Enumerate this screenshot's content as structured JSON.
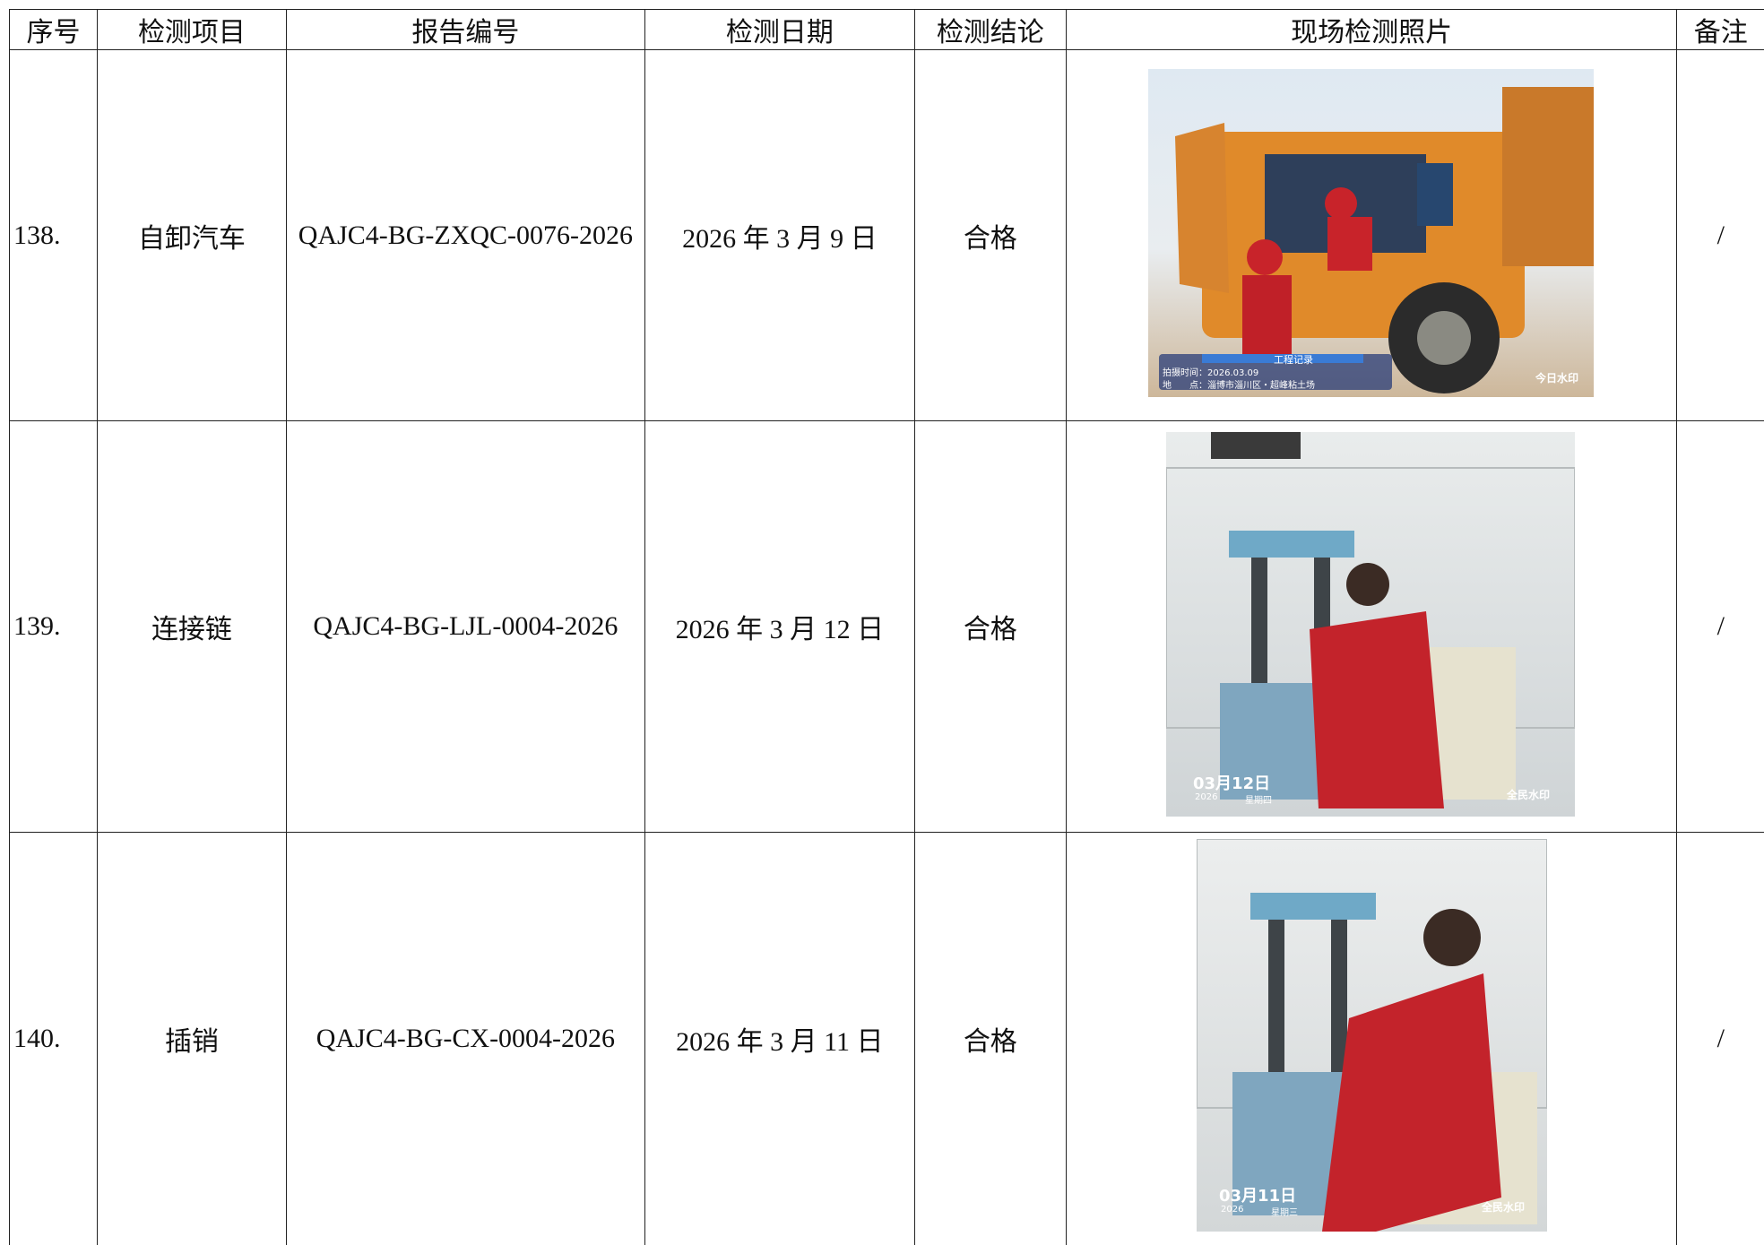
{
  "header": {
    "columns": [
      "序号",
      "检测项目",
      "报告编号",
      "检测日期",
      "检测结论",
      "现场检测照片",
      "备注"
    ]
  },
  "rows": [
    {
      "cells": [
        "138.",
        "自卸汽车",
        "QAJC4-BG-ZXQC-0076-2026",
        "2026 年 3 月 9 日",
        "合格",
        "/"
      ],
      "photo": {
        "watermark_title": "工程记录",
        "watermark_time": "拍摄时间：2026.03.09",
        "watermark_place": "地　　点：淄博市淄川区・超峰粘土场",
        "brand": "今日水印"
      }
    },
    {
      "cells": [
        "139.",
        "连接链",
        "QAJC4-BG-LJL-0004-2026",
        "2026 年 3 月 12 日",
        "合格",
        "/"
      ],
      "photo": {
        "date": "03月12日",
        "year": "2026",
        "weekday": "星期四",
        "brand": "全民水印"
      }
    },
    {
      "cells": [
        "140.",
        "插销",
        "QAJC4-BG-CX-0004-2026",
        "2026 年 3 月 11 日",
        "合格",
        "/"
      ],
      "photo": {
        "date": "03月11日",
        "year": "2026",
        "weekday": "星期三",
        "brand": "全民水印"
      }
    }
  ]
}
